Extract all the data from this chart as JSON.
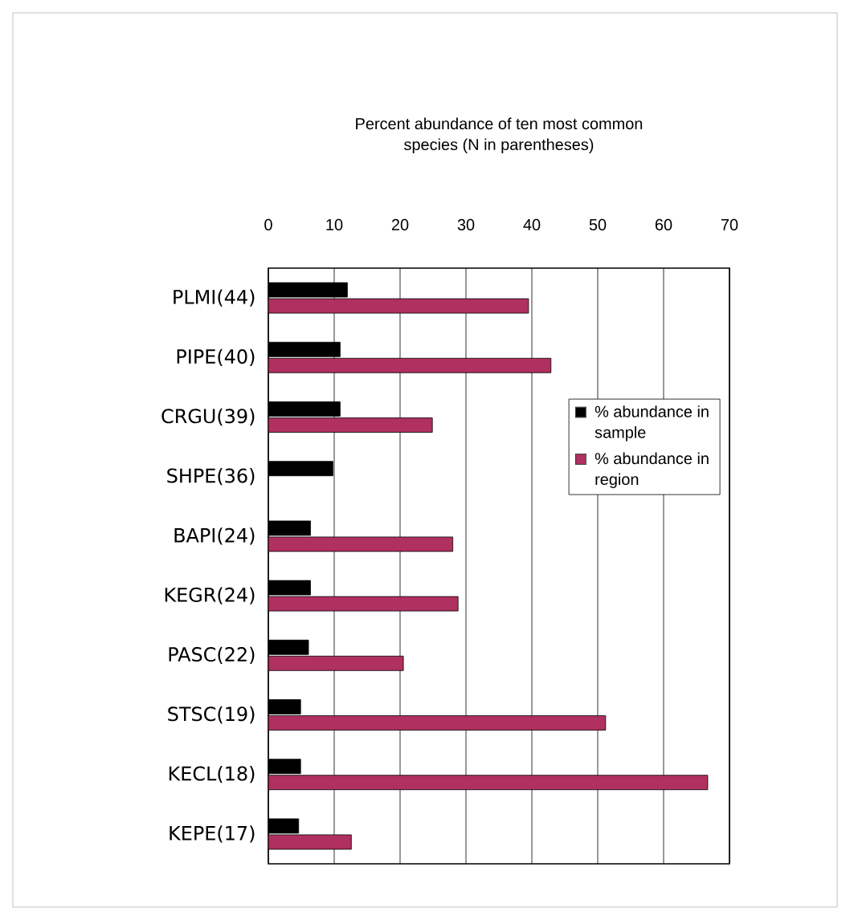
{
  "chart_data": {
    "type": "bar",
    "orientation": "horizontal",
    "title": "Percent abundance of ten most common species (N in parentheses)",
    "categories": [
      "PLMI(44)",
      "PIPE(40)",
      "CRGU(39)",
      "SHPE(36)",
      "BAPI(24)",
      "KEGR(24)",
      "PASC(22)",
      "STSC(19)",
      "KECL(18)",
      "KEPE(17)"
    ],
    "series": [
      {
        "name": "% abundance in sample",
        "color": "#000000",
        "values": [
          12.0,
          10.9,
          10.9,
          9.8,
          6.4,
          6.4,
          6.1,
          4.9,
          4.9,
          4.6
        ]
      },
      {
        "name": "% abundance in region",
        "color": "#b03060",
        "values": [
          39.5,
          42.9,
          24.9,
          null,
          28.0,
          28.8,
          20.5,
          51.2,
          66.7,
          12.6
        ]
      }
    ],
    "xlim": [
      0,
      70
    ],
    "xticks": [
      0,
      10,
      20,
      30,
      40,
      50,
      60,
      70
    ],
    "grid": "x",
    "legend": "right"
  }
}
